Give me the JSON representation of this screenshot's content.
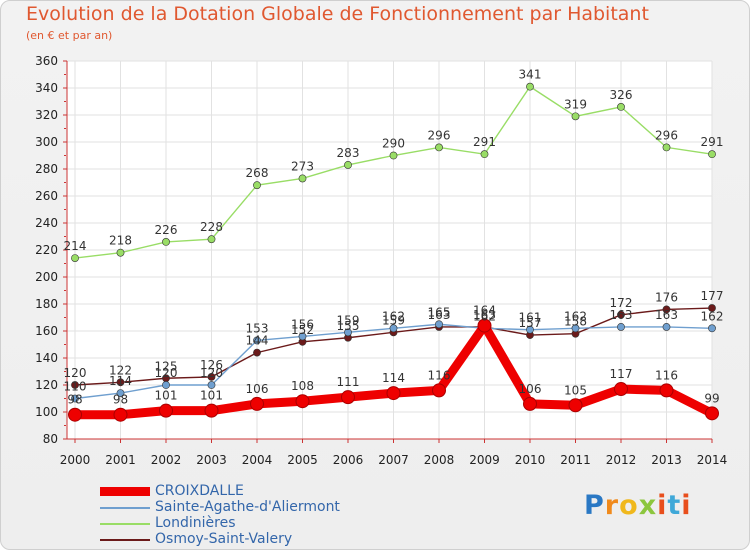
{
  "title": "Evolution de la Dotation Globale de Fonctionnement par Habitant",
  "subtitle": "(en € et par an)",
  "logo": [
    "P",
    "r",
    "o",
    "x",
    "i",
    "t",
    "i"
  ],
  "chart_data": {
    "type": "line",
    "title": "Evolution de la Dotation Globale de Fonctionnement par Habitant",
    "subtitle": "(en € et par an)",
    "xlabel": "",
    "ylabel": "",
    "ylim": [
      80,
      360
    ],
    "yticks": [
      80,
      100,
      120,
      140,
      160,
      180,
      200,
      220,
      240,
      260,
      280,
      300,
      320,
      340,
      360
    ],
    "grid": true,
    "legend_position": "bottom-left",
    "categories": [
      "2000",
      "2001",
      "2002",
      "2003",
      "2004",
      "2005",
      "2006",
      "2007",
      "2008",
      "2009",
      "2010",
      "2011",
      "2012",
      "2013",
      "2014"
    ],
    "series": [
      {
        "name": "Osmoy-Saint-Valery",
        "color": "#6b1a1a",
        "values": [
          120,
          122,
          125,
          126,
          144,
          152,
          155,
          159,
          163,
          163,
          157,
          158,
          172,
          176,
          177
        ],
        "labels": [
          "120",
          "122",
          "125",
          "126",
          "144",
          "152",
          "155",
          "159",
          "163",
          "163",
          "157",
          "158",
          "172",
          "176",
          "177"
        ]
      },
      {
        "name": "Sainte-Agathe-d'Aliermont",
        "color": "#6f9fcf",
        "values": [
          110,
          114,
          120,
          120,
          153,
          156,
          159,
          162,
          165,
          162,
          161,
          162,
          163,
          163,
          162
        ],
        "labels": [
          "110",
          "114",
          "120",
          "120",
          "153",
          "156",
          "159",
          "162",
          "165",
          "162",
          "161",
          "162",
          "163",
          "163",
          "162"
        ]
      },
      {
        "name": "Londinières",
        "color": "#99dd66",
        "values": [
          214,
          218,
          226,
          228,
          268,
          273,
          283,
          290,
          296,
          291,
          341,
          319,
          326,
          296,
          291
        ],
        "labels": [
          "214",
          "218",
          "226",
          "228",
          "268",
          "273",
          "283",
          "290",
          "296",
          "291",
          "341",
          "319",
          "326",
          "296",
          "291"
        ]
      },
      {
        "name": "CROIXDALLE",
        "color": "#ee0000",
        "values": [
          98,
          98,
          101,
          101,
          106,
          108,
          111,
          114,
          116,
          164,
          106,
          105,
          117,
          116,
          99
        ],
        "labels": [
          "98",
          "98",
          "101",
          "101",
          "106",
          "108",
          "111",
          "114",
          "116",
          "164",
          "106",
          "105",
          "117",
          "116",
          "99"
        ]
      }
    ],
    "legend": [
      "CROIXDALLE",
      "Sainte-Agathe-d'Aliermont",
      "Londinières",
      "Osmoy-Saint-Valery"
    ]
  }
}
